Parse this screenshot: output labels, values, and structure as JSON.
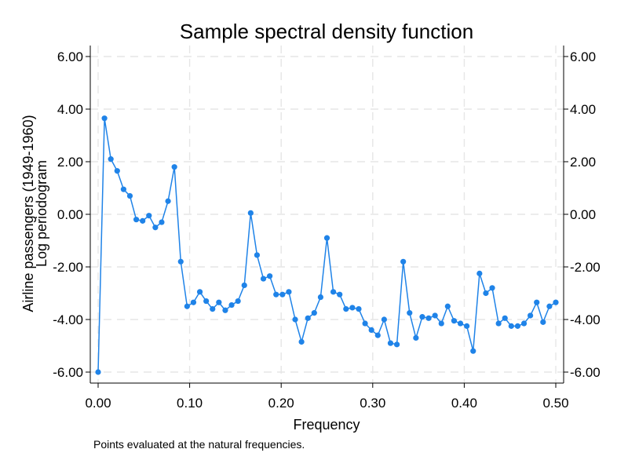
{
  "chart_data": {
    "type": "line",
    "title": "Sample spectral density function",
    "xlabel": "Frequency",
    "ylabel_lines": [
      "Airline passengers (1949-1960)",
      "Log periodogram"
    ],
    "note": "Points evaluated at the natural frequencies.",
    "xlim": [
      0,
      0.5
    ],
    "ylim": [
      -6,
      6
    ],
    "x_ticks": [
      0,
      0.1,
      0.2,
      0.3,
      0.4,
      0.5
    ],
    "x_tick_labels": [
      "0.00",
      "0.10",
      "0.20",
      "0.30",
      "0.40",
      "0.50"
    ],
    "y_ticks": [
      -6,
      -4,
      -2,
      0,
      2,
      4,
      6
    ],
    "y_tick_labels": [
      "-6.00",
      "-4.00",
      "-2.00",
      "0.00",
      "2.00",
      "4.00",
      "6.00"
    ],
    "grid": true,
    "right_axis": true,
    "color": "#1f83e8",
    "series": [
      {
        "x": [
          0.0,
          0.00694,
          0.01389,
          0.02083,
          0.02778,
          0.03472,
          0.04167,
          0.04861,
          0.05556,
          0.0625,
          0.06944,
          0.07639,
          0.08333,
          0.09028,
          0.09722,
          0.10417,
          0.11111,
          0.11806,
          0.125,
          0.13194,
          0.13889,
          0.14583,
          0.15278,
          0.15972,
          0.16667,
          0.17361,
          0.18056,
          0.1875,
          0.19444,
          0.20139,
          0.20833,
          0.21528,
          0.22222,
          0.22917,
          0.23611,
          0.24306,
          0.25,
          0.25694,
          0.26389,
          0.27083,
          0.27778,
          0.28472,
          0.29167,
          0.29861,
          0.30556,
          0.3125,
          0.31944,
          0.32639,
          0.33333,
          0.34028,
          0.34722,
          0.35417,
          0.36111,
          0.36806,
          0.375,
          0.38194,
          0.38889,
          0.39583,
          0.40278,
          0.40972,
          0.41667,
          0.42361,
          0.43056,
          0.4375,
          0.44444,
          0.45139,
          0.45833,
          0.46528,
          0.47222,
          0.47917,
          0.48611,
          0.49306,
          0.5
        ],
        "values": [
          -6.0,
          3.65,
          2.1,
          1.65,
          0.95,
          0.7,
          -0.2,
          -0.25,
          -0.05,
          -0.5,
          -0.3,
          0.5,
          1.8,
          -1.8,
          -3.5,
          -3.35,
          -2.95,
          -3.3,
          -3.6,
          -3.35,
          -3.65,
          -3.45,
          -3.3,
          -2.7,
          0.05,
          -1.55,
          -2.45,
          -2.35,
          -3.05,
          -3.05,
          -2.95,
          -4.0,
          -4.85,
          -3.95,
          -3.75,
          -3.15,
          -0.9,
          -2.95,
          -3.05,
          -3.6,
          -3.55,
          -3.6,
          -4.15,
          -4.4,
          -4.6,
          -4.0,
          -4.9,
          -4.95,
          -1.8,
          -3.75,
          -4.7,
          -3.9,
          -3.95,
          -3.85,
          -4.15,
          -3.5,
          -4.05,
          -4.15,
          -4.25,
          -5.2,
          -2.25,
          -3.0,
          -2.8,
          -4.15,
          -3.95,
          -4.25,
          -4.25,
          -4.15,
          -3.85,
          -3.35,
          -4.1,
          -3.5,
          -3.35
        ]
      }
    ]
  }
}
